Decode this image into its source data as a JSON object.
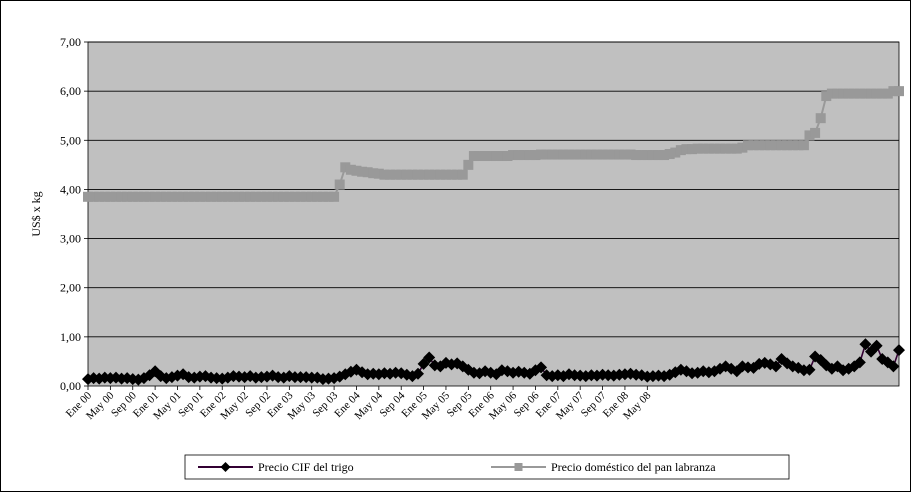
{
  "chart_data": {
    "type": "line",
    "title": "",
    "xlabel": "",
    "ylabel": "US$ x kg",
    "ylim": [
      0,
      7
    ],
    "yticks": [
      "0,00",
      "1,00",
      "2,00",
      "3,00",
      "4,00",
      "5,00",
      "6,00",
      "7,00"
    ],
    "xtick_labels": [
      "Ene 00",
      "May 00",
      "Sep 00",
      "Ene 01",
      "May 01",
      "Sep 01",
      "Ene 02",
      "May 02",
      "Sep 02",
      "Ene 03",
      "May 03",
      "Sep 03",
      "Ene 04",
      "May 04",
      "Sep 04",
      "Ene 05",
      "May 05",
      "Sep 05",
      "Ene 06",
      "May 06",
      "Sep 06",
      "Ene 07",
      "May 07",
      "Sep 07",
      "Ene 08",
      "May 08"
    ],
    "x_start": "Ene 00",
    "x_end": "May 08",
    "grid": "horizontal",
    "legend_position": "bottom",
    "plot_background": "#C0C0C0",
    "series": [
      {
        "name": "Precio CIF del trigo",
        "color": "#000000",
        "line_color": "#330033",
        "marker": "diamond",
        "values": [
          0.14,
          0.16,
          0.15,
          0.17,
          0.16,
          0.17,
          0.15,
          0.16,
          0.14,
          0.13,
          0.16,
          0.22,
          0.3,
          0.2,
          0.16,
          0.18,
          0.21,
          0.24,
          0.18,
          0.17,
          0.19,
          0.2,
          0.17,
          0.16,
          0.15,
          0.17,
          0.2,
          0.19,
          0.18,
          0.2,
          0.17,
          0.18,
          0.19,
          0.21,
          0.18,
          0.17,
          0.2,
          0.18,
          0.18,
          0.18,
          0.17,
          0.17,
          0.14,
          0.15,
          0.16,
          0.19,
          0.24,
          0.29,
          0.33,
          0.28,
          0.24,
          0.25,
          0.24,
          0.26,
          0.25,
          0.27,
          0.26,
          0.23,
          0.2,
          0.25,
          0.45,
          0.58,
          0.42,
          0.4,
          0.47,
          0.44,
          0.46,
          0.4,
          0.33,
          0.27,
          0.26,
          0.3,
          0.27,
          0.24,
          0.32,
          0.3,
          0.27,
          0.29,
          0.27,
          0.25,
          0.32,
          0.38,
          0.22,
          0.2,
          0.22,
          0.2,
          0.24,
          0.22,
          0.21,
          0.2,
          0.22,
          0.21,
          0.23,
          0.22,
          0.21,
          0.23,
          0.24,
          0.25,
          0.23,
          0.22,
          0.19,
          0.2,
          0.21,
          0.2,
          0.23,
          0.28,
          0.33,
          0.3,
          0.26,
          0.27,
          0.3,
          0.28,
          0.3,
          0.35,
          0.4,
          0.35,
          0.3,
          0.4,
          0.38,
          0.37,
          0.45,
          0.47,
          0.44,
          0.4,
          0.55,
          0.46,
          0.4,
          0.37,
          0.32,
          0.33,
          0.6,
          0.53,
          0.42,
          0.35,
          0.4,
          0.32,
          0.35,
          0.4,
          0.48,
          0.85,
          0.7,
          0.82,
          0.55,
          0.48,
          0.4,
          0.73
        ]
      },
      {
        "name": "Precio doméstico del pan labranza",
        "color": "#999999",
        "marker": "square",
        "values": [
          3.85,
          3.85,
          3.85,
          3.85,
          3.85,
          3.85,
          3.85,
          3.85,
          3.85,
          3.85,
          3.85,
          3.85,
          3.85,
          3.85,
          3.85,
          3.85,
          3.85,
          3.85,
          3.85,
          3.85,
          3.85,
          3.85,
          3.85,
          3.85,
          3.85,
          3.85,
          3.85,
          3.85,
          3.85,
          3.85,
          3.85,
          3.85,
          3.85,
          3.85,
          3.85,
          3.85,
          3.85,
          3.85,
          3.85,
          3.85,
          3.85,
          3.85,
          3.85,
          3.85,
          3.85,
          4.1,
          4.45,
          4.4,
          4.38,
          4.36,
          4.35,
          4.33,
          4.32,
          4.3,
          4.3,
          4.3,
          4.3,
          4.3,
          4.3,
          4.3,
          4.3,
          4.3,
          4.3,
          4.3,
          4.3,
          4.3,
          4.3,
          4.3,
          4.5,
          4.68,
          4.68,
          4.68,
          4.68,
          4.68,
          4.68,
          4.68,
          4.7,
          4.7,
          4.7,
          4.7,
          4.7,
          4.71,
          4.71,
          4.71,
          4.71,
          4.71,
          4.71,
          4.71,
          4.71,
          4.71,
          4.71,
          4.71,
          4.71,
          4.71,
          4.71,
          4.71,
          4.71,
          4.71,
          4.7,
          4.7,
          4.7,
          4.7,
          4.7,
          4.7,
          4.72,
          4.75,
          4.8,
          4.82,
          4.82,
          4.83,
          4.83,
          4.83,
          4.83,
          4.83,
          4.83,
          4.83,
          4.83,
          4.85,
          4.9,
          4.9,
          4.9,
          4.9,
          4.9,
          4.9,
          4.9,
          4.9,
          4.9,
          4.9,
          4.9,
          5.1,
          5.15,
          5.45,
          5.9,
          5.95,
          5.95,
          5.95,
          5.95,
          5.95,
          5.95,
          5.95,
          5.95,
          5.95,
          5.95,
          5.95,
          6.0,
          6.0
        ]
      }
    ]
  }
}
